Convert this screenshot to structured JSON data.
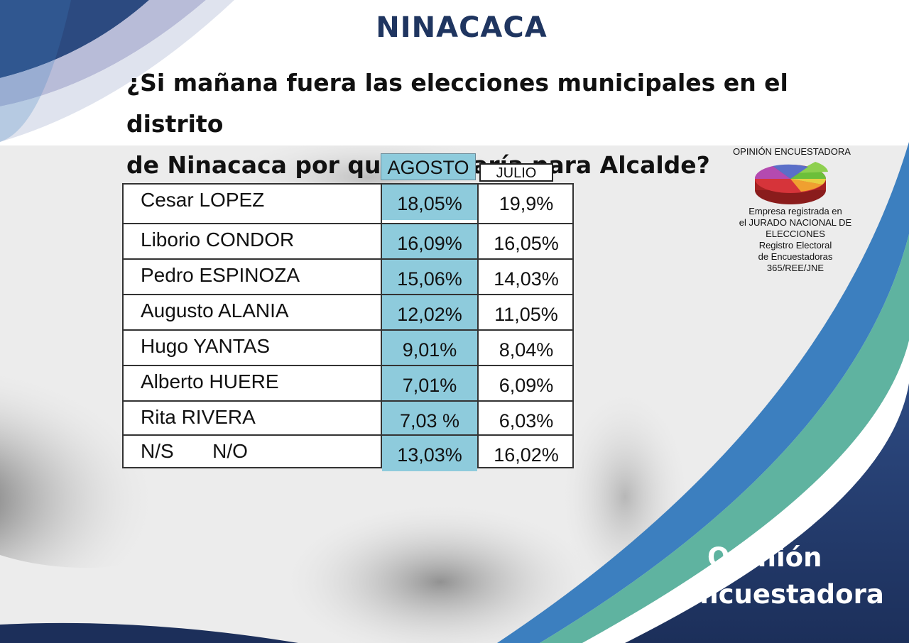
{
  "header": {
    "title": "NINACACA",
    "question_line1": "¿Si  mañana fuera las elecciones municipales en el distrito",
    "question_line2": "de Ninacaca por quién votaría para Alcalde?"
  },
  "brand": {
    "name": "OPINIÓN ENCUESTADORA",
    "logo": "pie-chart-logo-icon",
    "registration": [
      "Empresa registrada en",
      "el JURADO NACIONAL DE",
      "ELECCIONES",
      "Registro Electoral",
      "de Encuestadoras",
      "365/REE/JNE"
    ]
  },
  "columns": {
    "agosto": "AGOSTO",
    "julio": "JULIO"
  },
  "rows": [
    {
      "name": "Cesar LOPEZ",
      "agosto": "18,05%",
      "julio": "19,9%"
    },
    {
      "name": "Liborio CONDOR",
      "agosto": "16,09%",
      "julio": "16,05%"
    },
    {
      "name": "Pedro ESPINOZA",
      "agosto": "15,06%",
      "julio": "14,03%"
    },
    {
      "name": "Augusto ALANIA",
      "agosto": "12,02%",
      "julio": "11,05%"
    },
    {
      "name": "Hugo YANTAS",
      "agosto": "9,01%",
      "julio": "8,04%"
    },
    {
      "name": "Alberto HUERE",
      "agosto": "7,01%",
      "julio": "6,09%"
    },
    {
      "name": "Rita RIVERA",
      "agosto": "7,03 %",
      "julio": "6,03%"
    },
    {
      "name": "N/S       N/O",
      "agosto": "13,03%",
      "julio": "16,02%"
    }
  ],
  "footer": {
    "line1": "Opinión",
    "line2": "Encuestadora"
  },
  "colors": {
    "navy": "#1f3560",
    "agosto_fill": "#8ecbdc",
    "teal": "#5fb3a0",
    "blue": "#3c7fbf"
  }
}
